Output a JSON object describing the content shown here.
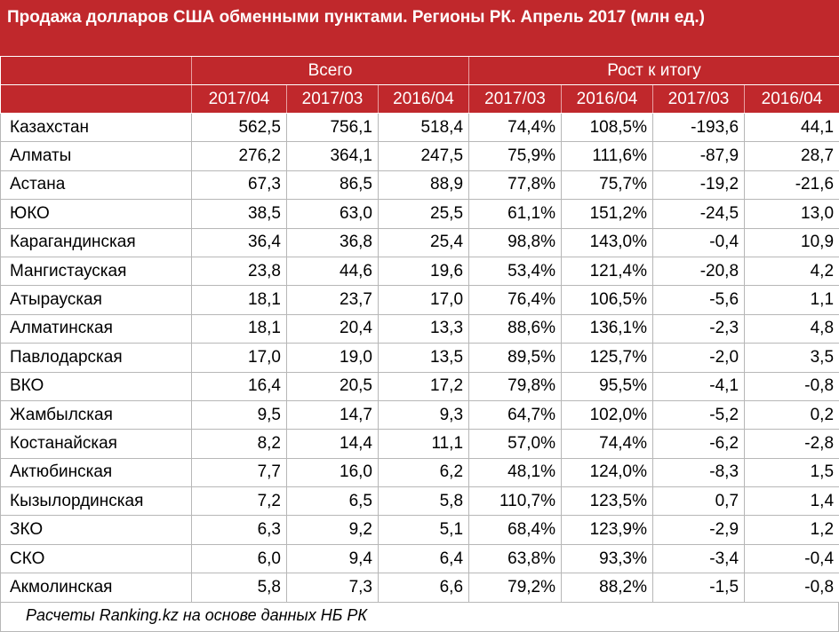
{
  "title": "Продажа долларов США обменными пунктами. Регионы РК. Апрель 2017 (млн ед.)",
  "header": {
    "group1": "Всего",
    "group2": "Рост к итогу",
    "cols": [
      "2017/04",
      "2017/03",
      "2016/04",
      "2017/03",
      "2016/04",
      "2017/03",
      "2016/04"
    ]
  },
  "rows": [
    {
      "region": "Казахстан",
      "v": [
        "562,5",
        "756,1",
        "518,4",
        "74,4%",
        "108,5%",
        "-193,6",
        "44,1"
      ]
    },
    {
      "region": "Алматы",
      "v": [
        "276,2",
        "364,1",
        "247,5",
        "75,9%",
        "111,6%",
        "-87,9",
        "28,7"
      ]
    },
    {
      "region": "Астана",
      "v": [
        "67,3",
        "86,5",
        "88,9",
        "77,8%",
        "75,7%",
        "-19,2",
        "-21,6"
      ]
    },
    {
      "region": "ЮКО",
      "v": [
        "38,5",
        "63,0",
        "25,5",
        "61,1%",
        "151,2%",
        "-24,5",
        "13,0"
      ]
    },
    {
      "region": "Карагандинская",
      "v": [
        "36,4",
        "36,8",
        "25,4",
        "98,8%",
        "143,0%",
        "-0,4",
        "10,9"
      ]
    },
    {
      "region": "Мангистауская",
      "v": [
        "23,8",
        "44,6",
        "19,6",
        "53,4%",
        "121,4%",
        "-20,8",
        "4,2"
      ]
    },
    {
      "region": "Атырауская",
      "v": [
        "18,1",
        "23,7",
        "17,0",
        "76,4%",
        "106,5%",
        "-5,6",
        "1,1"
      ]
    },
    {
      "region": "Алматинская",
      "v": [
        "18,1",
        "20,4",
        "13,3",
        "88,6%",
        "136,1%",
        "-2,3",
        "4,8"
      ]
    },
    {
      "region": "Павлодарская",
      "v": [
        "17,0",
        "19,0",
        "13,5",
        "89,5%",
        "125,7%",
        "-2,0",
        "3,5"
      ]
    },
    {
      "region": "ВКО",
      "v": [
        "16,4",
        "20,5",
        "17,2",
        "79,8%",
        "95,5%",
        "-4,1",
        "-0,8"
      ]
    },
    {
      "region": "Жамбылская",
      "v": [
        "9,5",
        "14,7",
        "9,3",
        "64,7%",
        "102,0%",
        "-5,2",
        "0,2"
      ]
    },
    {
      "region": "Костанайская",
      "v": [
        "8,2",
        "14,4",
        "11,1",
        "57,0%",
        "74,4%",
        "-6,2",
        "-2,8"
      ]
    },
    {
      "region": "Актюбинская",
      "v": [
        "7,7",
        "16,0",
        "6,2",
        "48,1%",
        "124,0%",
        "-8,3",
        "1,5"
      ]
    },
    {
      "region": "Кызылординская",
      "v": [
        "7,2",
        "6,5",
        "5,8",
        "110,7%",
        "123,5%",
        "0,7",
        "1,4"
      ]
    },
    {
      "region": "ЗКО",
      "v": [
        "6,3",
        "9,2",
        "5,1",
        "68,4%",
        "123,9%",
        "-2,9",
        "1,2"
      ]
    },
    {
      "region": "СКО",
      "v": [
        "6,0",
        "9,4",
        "6,4",
        "63,8%",
        "93,3%",
        "-3,4",
        "-0,4"
      ]
    },
    {
      "region": "Акмолинская",
      "v": [
        "5,8",
        "7,3",
        "6,6",
        "79,2%",
        "88,2%",
        "-1,5",
        "-0,8"
      ]
    }
  ],
  "footer": "Расчеты Ranking.kz на основе данных НБ РК",
  "colors": {
    "header_bg": "#c0282c",
    "header_text": "#ffffff"
  }
}
